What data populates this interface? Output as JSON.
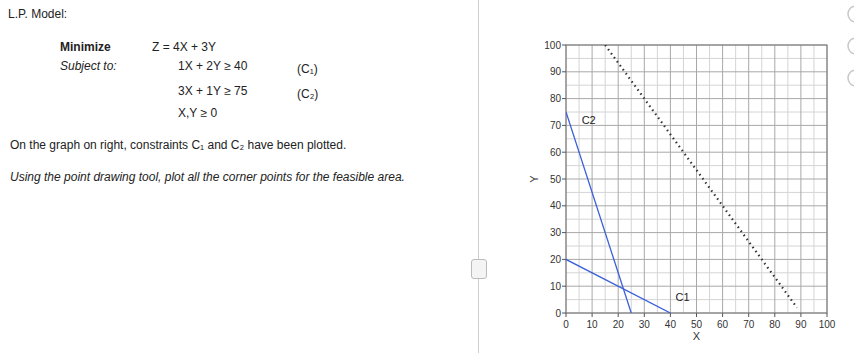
{
  "page": {
    "heading": "L.P. Model:",
    "sense": "Minimize",
    "objective": "Z = 4X + 3Y",
    "subject_to": "Subject to:",
    "constraints": [
      {
        "expr": "1X + 2Y ≥ 40",
        "label": "(C₁)"
      },
      {
        "expr": "3X + 1Y ≥ 75",
        "label": "(C₂)"
      },
      {
        "expr": "X,Y ≥ 0"
      }
    ],
    "note": "On the graph on right, constraints C₁ and C₂ have been plotted.",
    "instruction": "Using the point drawing tool, plot all the corner points for the feasible area."
  },
  "chart_data": {
    "type": "line",
    "x_label": "X",
    "y_label": "Y",
    "xlim": [
      0,
      100
    ],
    "ylim": [
      0,
      100
    ],
    "xticks": [
      0,
      10,
      20,
      30,
      40,
      50,
      60,
      70,
      80,
      90,
      100
    ],
    "yticks": [
      0,
      10,
      20,
      30,
      40,
      50,
      60,
      70,
      80,
      90,
      100
    ],
    "grid": true,
    "series": [
      {
        "x": [
          0,
          25
        ],
        "values": [
          75,
          0
        ],
        "color": "#3a5fd9",
        "line_style": "solid"
      },
      {
        "x": [
          0,
          40
        ],
        "values": [
          20,
          0
        ],
        "color": "#3a5fd9",
        "line_style": "solid"
      },
      {
        "x": [
          15,
          88.5
        ],
        "values": [
          100,
          2
        ],
        "color": "#333333",
        "line_style": "dotted"
      }
    ],
    "annotations": [
      {
        "text": "C2",
        "x": 6,
        "y": 72
      },
      {
        "text": "C1",
        "x": 42,
        "y": 6
      }
    ]
  }
}
